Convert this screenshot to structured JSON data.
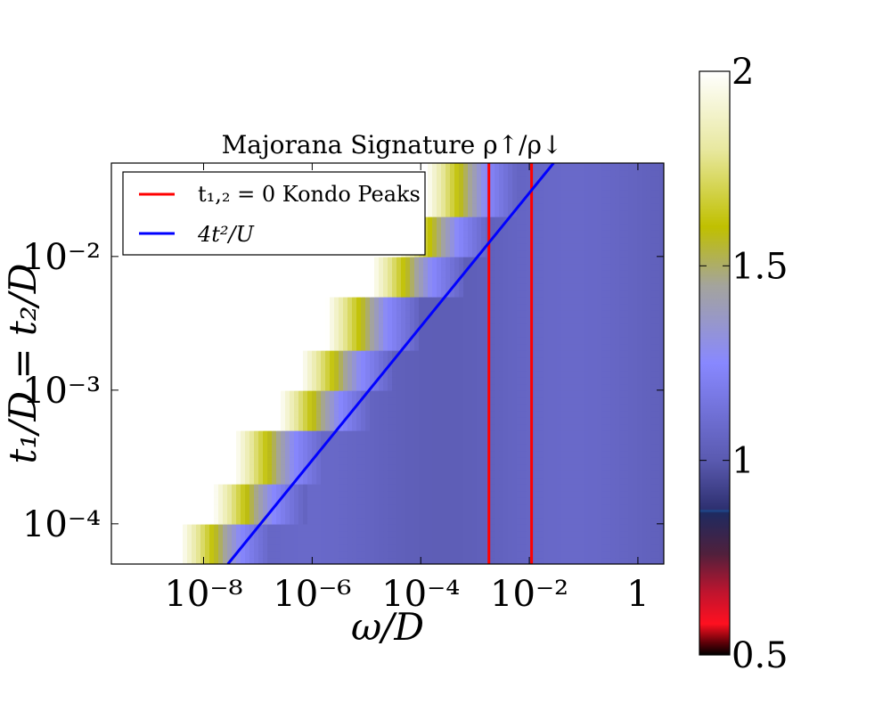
{
  "chart_data": {
    "type": "heatmap",
    "title": "Majorana Signature ρ↑/ρ↓",
    "xlabel": "ω/D",
    "ylabel": "t₁/D = t₂/D",
    "x_scale": "log",
    "y_scale": "log",
    "xlim": [
      2e-10,
      3
    ],
    "ylim": [
      5e-05,
      0.05
    ],
    "x_ticks": [
      {
        "value": 1e-08,
        "label": "10⁻⁸"
      },
      {
        "value": 1e-06,
        "label": "10⁻⁶"
      },
      {
        "value": 0.0001,
        "label": "10⁻⁴"
      },
      {
        "value": 0.01,
        "label": "10⁻²"
      },
      {
        "value": 1,
        "label": "1"
      }
    ],
    "y_ticks": [
      {
        "value": 0.0001,
        "label": "10⁻⁴"
      },
      {
        "value": 0.001,
        "label": "10⁻³"
      },
      {
        "value": 0.01,
        "label": "10⁻²"
      }
    ],
    "colorbar": {
      "range": [
        0.5,
        2
      ],
      "ticks": [
        {
          "value": 0.5,
          "label": "0.5"
        },
        {
          "value": 1,
          "label": "1"
        },
        {
          "value": 1.5,
          "label": "1.5"
        },
        {
          "value": 2,
          "label": "2"
        }
      ],
      "stops": [
        {
          "value": 0.5,
          "color": "#000000"
        },
        {
          "value": 0.53,
          "color": "#5a0008"
        },
        {
          "value": 0.58,
          "color": "#ff1020"
        },
        {
          "value": 0.66,
          "color": "#c0142e"
        },
        {
          "value": 0.76,
          "color": "#50203c"
        },
        {
          "value": 0.865,
          "color": "#1e2a60"
        },
        {
          "value": 0.87,
          "color": "#1d4a8c"
        },
        {
          "value": 0.875,
          "color": "#2e3070"
        },
        {
          "value": 1.0,
          "color": "#5a5ab0"
        },
        {
          "value": 1.25,
          "color": "#8888ff"
        },
        {
          "value": 1.45,
          "color": "#a4a49c"
        },
        {
          "value": 1.6,
          "color": "#c0c000"
        },
        {
          "value": 1.8,
          "color": "#e8e8a0"
        },
        {
          "value": 2.0,
          "color": "#ffffff"
        }
      ]
    },
    "heatmap_model": {
      "description_values": "ratio vs (omega, t): ~2 for omega << t^2 scale, crossover band ~1.6 (yellow) then ~1.25 (light blue), then plateau ~1.05",
      "crossover_steps": [
        {
          "t": 5e-05,
          "omega_cross": 3e-08
        },
        {
          "t": 0.0001,
          "omega_cross": 1.2e-07
        },
        {
          "t": 0.0002,
          "omega_cross": 3e-07
        },
        {
          "t": 0.0005,
          "omega_cross": 2e-06
        },
        {
          "t": 0.001,
          "omega_cross": 5e-06
        },
        {
          "t": 0.002,
          "omega_cross": 1.5e-05
        },
        {
          "t": 0.005,
          "omega_cross": 0.0001
        },
        {
          "t": 0.01,
          "omega_cross": 0.0003
        },
        {
          "t": 0.02,
          "omega_cross": 0.001
        },
        {
          "t": 0.05,
          "omega_cross": 0.007
        }
      ],
      "plateau_value": 1.05,
      "background_value": 2.0
    },
    "series": [
      {
        "name": "t₁,₂ = 0 Kondo Peaks",
        "kind": "vertical_lines",
        "color": "#ff0000",
        "x": [
          0.0018,
          0.011
        ]
      },
      {
        "name": "4t²/U",
        "kind": "line",
        "color": "#0000ff",
        "points": [
          {
            "x": 2.8e-08,
            "y": 5e-05
          },
          {
            "x": 0.028,
            "y": 0.05
          }
        ]
      }
    ],
    "legend": {
      "location": "upper-left",
      "entries": [
        {
          "label": "t₁,₂ = 0 Kondo Peaks",
          "color": "#ff0000"
        },
        {
          "label": "4t²/U",
          "color": "#0000ff"
        }
      ]
    },
    "grid": false
  }
}
